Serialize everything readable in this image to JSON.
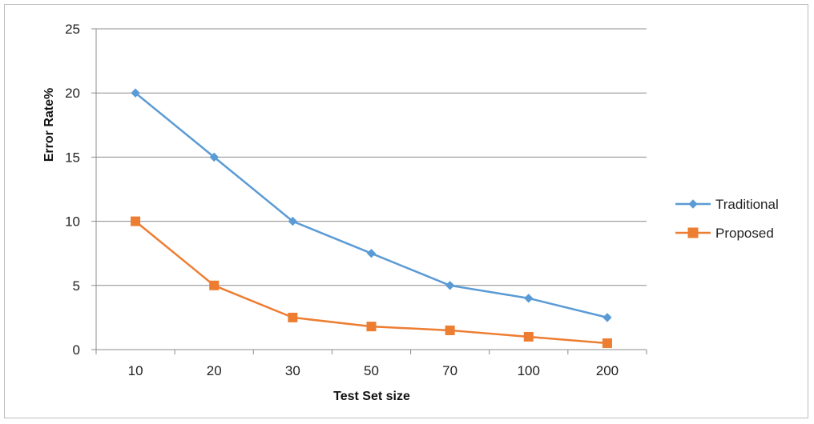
{
  "chart_data": {
    "type": "line",
    "categories": [
      "10",
      "20",
      "30",
      "50",
      "70",
      "100",
      "200"
    ],
    "xlabel": "Test Set size",
    "ylabel": "Error Rate%",
    "ylim": [
      0,
      25
    ],
    "yticks": [
      "0",
      "5",
      "10",
      "15",
      "20",
      "25"
    ],
    "grid": true,
    "legend_position": "right",
    "series": [
      {
        "name": "Traditional",
        "values": [
          20,
          15,
          10,
          7.5,
          5,
          4,
          2.5
        ],
        "color": "#5b9bd5",
        "marker": "diamond"
      },
      {
        "name": "Proposed",
        "values": [
          10,
          5,
          2.5,
          1.8,
          1.5,
          1,
          0.5
        ],
        "color": "#ed7d31",
        "marker": "square"
      }
    ]
  }
}
